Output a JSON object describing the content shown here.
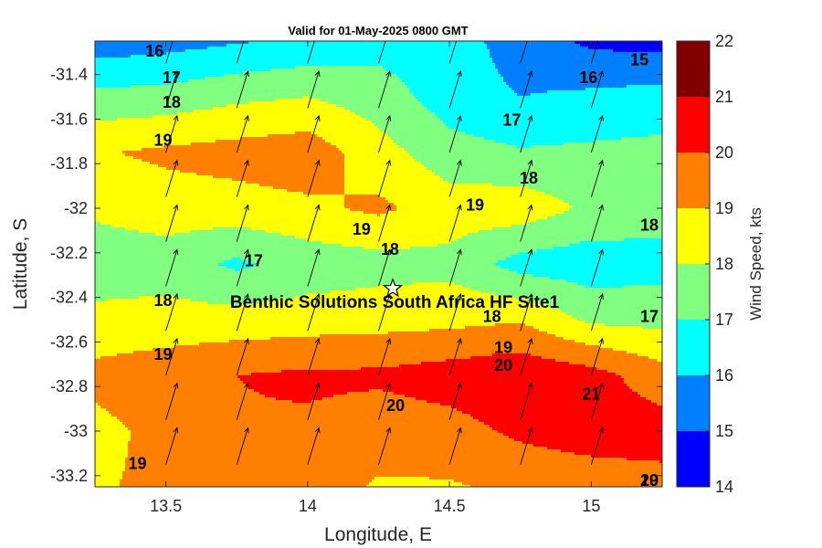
{
  "chart_data": {
    "type": "heatmap",
    "subtype": "filled-contour-with-wind-vectors",
    "title": "Valid for 01-May-2025 0800 GMT",
    "xlabel": "Longitude, E",
    "ylabel": "Latitude, S",
    "xlim": [
      13.25,
      15.25
    ],
    "ylim": [
      -33.25,
      -31.25
    ],
    "x_ticks": [
      13.5,
      14,
      14.5,
      15
    ],
    "x_tick_labels": [
      "13.5",
      "14",
      "14.5",
      "15"
    ],
    "y_ticks": [
      -31.4,
      -31.6,
      -31.8,
      -32,
      -32.2,
      -32.4,
      -32.6,
      -32.8,
      -33,
      -33.2
    ],
    "y_tick_labels": [
      "-31.4",
      "-31.6",
      "-31.8",
      "-32",
      "-32.2",
      "-32.4",
      "-32.6",
      "-32.8",
      "-33",
      "-33.2"
    ],
    "colorbar": {
      "label": "Wind Speed, kts",
      "levels": [
        14,
        15,
        16,
        17,
        18,
        19,
        20,
        21,
        22
      ],
      "tick_labels": [
        "14",
        "15",
        "16",
        "17",
        "18",
        "19",
        "20",
        "21",
        "22"
      ],
      "colors": [
        "#0000ff",
        "#0080ff",
        "#00ffff",
        "#80ff80",
        "#ffff00",
        "#ff8000",
        "#ff0000",
        "#800000"
      ]
    },
    "grid_lon": [
      13.25,
      13.5,
      13.75,
      14,
      14.25,
      14.5,
      14.75,
      15,
      15.25
    ],
    "grid_lat": [
      -31.25,
      -31.5,
      -31.75,
      -32,
      -32.25,
      -32.5,
      -32.75,
      -33,
      -33.25
    ],
    "wind_speed_kts": [
      [
        15.4,
        15.6,
        15.9,
        16.2,
        16.6,
        16.5,
        15.5,
        14.8,
        14.6
      ],
      [
        17.3,
        17.4,
        17.8,
        18.0,
        17.5,
        16.5,
        16.0,
        16.2,
        16.4
      ],
      [
        18.9,
        19.2,
        19.4,
        19.6,
        18.4,
        17.4,
        17.1,
        17.2,
        17.3
      ],
      [
        18.2,
        18.5,
        18.6,
        18.8,
        19.2,
        18.5,
        18.6,
        17.8,
        17.5
      ],
      [
        17.4,
        17.5,
        16.8,
        17.4,
        17.6,
        17.7,
        16.6,
        16.4,
        16.6
      ],
      [
        18.3,
        18.4,
        18.4,
        18.5,
        18.6,
        18.7,
        18.9,
        17.8,
        17.7
      ],
      [
        19.3,
        19.6,
        20.0,
        20.2,
        20.2,
        20.5,
        20.8,
        20.4,
        19.4
      ],
      [
        18.7,
        19.3,
        19.9,
        19.8,
        19.4,
        19.6,
        20.2,
        20.5,
        20.5
      ],
      [
        18.9,
        19.2,
        19.5,
        19.5,
        18.9,
        18.9,
        19.2,
        19.4,
        19.6
      ]
    ],
    "vector_lon": [
      13.5,
      13.75,
      14.0,
      14.25,
      14.5,
      14.75,
      15.0
    ],
    "vector_lat": [
      -31.35,
      -31.55,
      -31.75,
      -31.95,
      -32.15,
      -32.35,
      -32.55,
      -32.75,
      -32.95,
      -33.15
    ],
    "wind_direction_deg_from": 197,
    "contour_labels": [
      {
        "text": "15",
        "lon": 15.17,
        "lat": -31.34
      },
      {
        "text": "16",
        "lon": 13.46,
        "lat": -31.3
      },
      {
        "text": "16",
        "lon": 14.99,
        "lat": -31.42
      },
      {
        "text": "17",
        "lon": 13.52,
        "lat": -31.42
      },
      {
        "text": "17",
        "lon": 14.72,
        "lat": -31.61
      },
      {
        "text": "17",
        "lon": 13.81,
        "lat": -32.24
      },
      {
        "text": "17",
        "lon": 15.34,
        "lat": -32.49
      },
      {
        "text": "18",
        "lon": 13.52,
        "lat": -31.53
      },
      {
        "text": "18",
        "lon": 14.78,
        "lat": -31.87
      },
      {
        "text": "18",
        "lon": 15.24,
        "lat": -32.08
      },
      {
        "text": "18",
        "lon": 14.29,
        "lat": -32.19
      },
      {
        "text": "18",
        "lon": 13.49,
        "lat": -32.42
      },
      {
        "text": "18",
        "lon": 14.65,
        "lat": -32.49
      },
      {
        "text": "19",
        "lon": 13.49,
        "lat": -31.7
      },
      {
        "text": "19",
        "lon": 14.59,
        "lat": -31.99
      },
      {
        "text": "19",
        "lon": 14.19,
        "lat": -32.1
      },
      {
        "text": "19",
        "lon": 14.69,
        "lat": -32.63
      },
      {
        "text": "19",
        "lon": 13.49,
        "lat": -32.66
      },
      {
        "text": "19",
        "lon": 13.4,
        "lat": -33.15
      },
      {
        "text": "19",
        "lon": 15.26,
        "lat": -33.29
      },
      {
        "text": "20",
        "lon": 14.69,
        "lat": -32.71
      },
      {
        "text": "20",
        "lon": 14.31,
        "lat": -32.89
      },
      {
        "text": "20",
        "lon": 15.29,
        "lat": -33.23
      },
      {
        "text": "21",
        "lon": 15.0,
        "lat": -32.84
      }
    ],
    "site_marker": {
      "name": "Benthic Solutions South Africa HF Site1",
      "lon": 14.3,
      "lat": -32.36
    }
  }
}
